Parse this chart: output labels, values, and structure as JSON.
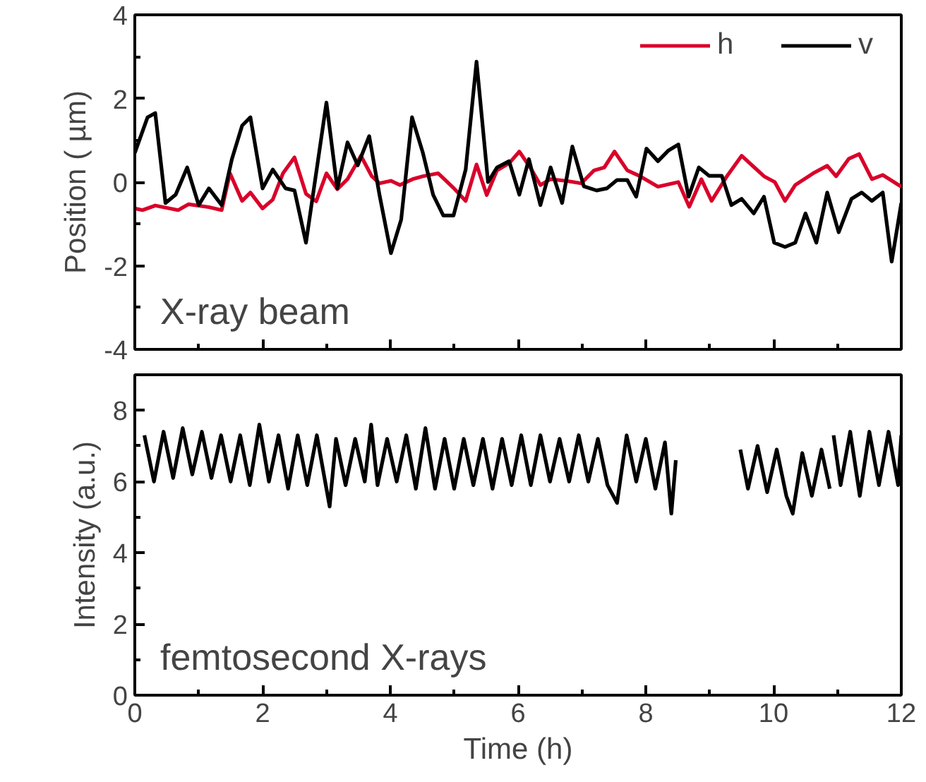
{
  "chart_data": [
    {
      "type": "line",
      "ylabel": "Position ( µm)",
      "annotations": [
        "X-ray beam"
      ],
      "legend": "top right",
      "grid": false,
      "tick_labels": "y",
      "xlim": [
        0,
        12
      ],
      "xticks": [
        0,
        {
          "value": 1,
          "label": null
        },
        2,
        {
          "value": 3,
          "label": null
        },
        4,
        {
          "value": 5,
          "label": null
        },
        6,
        {
          "value": 7,
          "label": null
        },
        8,
        {
          "value": 9,
          "label": null
        },
        10,
        {
          "value": 11,
          "label": null
        },
        12
      ],
      "ylim": [
        -4,
        4
      ],
      "yticks": [
        -4,
        {
          "value": -3,
          "label": null
        },
        -2,
        {
          "value": -1,
          "label": null
        },
        0,
        {
          "value": 1,
          "label": null
        },
        2,
        {
          "value": 3,
          "label": null
        },
        4
      ],
      "series": [
        {
          "name": "h",
          "color": "#d9002a",
          "x": [
            0,
            0.12,
            0.32,
            0.68,
            0.84,
            1.16,
            1.36,
            1.49,
            1.68,
            1.81,
            2.0,
            2.16,
            2.32,
            2.5,
            2.68,
            2.84,
            3.0,
            3.17,
            3.33,
            3.54,
            3.71,
            3.83,
            4.01,
            4.15,
            4.35,
            4.51,
            4.75,
            4.99,
            5.18,
            5.35,
            5.51,
            5.67,
            5.86,
            6.02,
            6.19,
            6.35,
            6.51,
            6.75,
            6.99,
            7.19,
            7.35,
            7.51,
            7.71,
            7.91,
            8.19,
            8.51,
            8.68,
            8.87,
            9.03,
            9.27,
            9.5,
            9.7,
            9.85,
            10.02,
            10.18,
            10.34,
            10.62,
            10.84,
            10.98,
            11.18,
            11.34,
            11.54,
            11.71,
            12.0
          ],
          "values": [
            -0.63,
            -0.67,
            -0.56,
            -0.67,
            -0.53,
            -0.6,
            -0.67,
            0.21,
            -0.45,
            -0.25,
            -0.63,
            -0.42,
            0.21,
            0.59,
            -0.28,
            -0.46,
            0.21,
            -0.17,
            0.07,
            0.63,
            0.14,
            -0.03,
            0.03,
            -0.07,
            0.07,
            0.14,
            0.21,
            -0.14,
            -0.45,
            0.42,
            -0.31,
            0.28,
            0.45,
            0.73,
            0.35,
            -0.07,
            0.07,
            0.03,
            -0.03,
            0.28,
            0.35,
            0.73,
            0.28,
            0.14,
            -0.11,
            0,
            -0.59,
            0.07,
            -0.45,
            0.14,
            0.63,
            0.35,
            0.14,
            0,
            -0.45,
            -0.07,
            0.21,
            0.39,
            0.14,
            0.56,
            0.67,
            0.07,
            0.17,
            -0.11
          ]
        },
        {
          "name": "v",
          "color": "#000000",
          "x": [
            0,
            0.2,
            0.32,
            0.48,
            0.64,
            0.82,
            1.0,
            1.16,
            1.36,
            1.52,
            1.68,
            1.81,
            2.0,
            2.16,
            2.36,
            2.5,
            2.68,
            3.0,
            3.17,
            3.33,
            3.49,
            3.67,
            3.83,
            4.01,
            4.17,
            4.34,
            4.51,
            4.67,
            4.83,
            4.99,
            5.18,
            5.35,
            5.53,
            5.67,
            5.86,
            6.02,
            6.17,
            6.35,
            6.51,
            6.69,
            6.85,
            7.03,
            7.23,
            7.39,
            7.55,
            7.71,
            7.85,
            8.01,
            8.19,
            8.35,
            8.51,
            8.67,
            8.83,
            8.99,
            9.19,
            9.34,
            9.5,
            9.69,
            9.85,
            10.01,
            10.18,
            10.34,
            10.5,
            10.67,
            10.84,
            11.02,
            11.22,
            11.38,
            11.54,
            11.71,
            11.85,
            12.0
          ],
          "values": [
            0.7,
            1.55,
            1.65,
            -0.5,
            -0.3,
            0.35,
            -0.55,
            -0.15,
            -0.55,
            0.55,
            1.35,
            1.55,
            -0.15,
            0.3,
            -0.15,
            -0.2,
            -1.45,
            1.9,
            -0.15,
            0.95,
            0.4,
            1.1,
            -0.3,
            -1.7,
            -0.9,
            1.55,
            0.7,
            -0.3,
            -0.8,
            -0.8,
            0.3,
            2.88,
            0,
            0.35,
            0.5,
            -0.3,
            0.55,
            -0.55,
            0.35,
            -0.5,
            0.85,
            -0.1,
            -0.2,
            -0.15,
            0.05,
            0.05,
            -0.35,
            0.8,
            0.5,
            0.75,
            0.9,
            -0.35,
            0.35,
            0.15,
            0.15,
            -0.55,
            -0.4,
            -0.75,
            -0.35,
            -1.45,
            -1.55,
            -1.45,
            -0.75,
            -1.45,
            -0.25,
            -1.2,
            -0.4,
            -0.25,
            -0.45,
            -0.25,
            -1.9,
            -0.5
          ]
        }
      ]
    },
    {
      "type": "line",
      "xlabel": "Time (h)",
      "ylabel": "Intensity (a.u.)",
      "annotations": [
        "femtosecond X-rays"
      ],
      "grid": false,
      "xlim": [
        0,
        12
      ],
      "xticks": [
        0,
        {
          "value": 1,
          "label": null
        },
        2,
        {
          "value": 3,
          "label": null
        },
        4,
        {
          "value": 5,
          "label": null
        },
        6,
        {
          "value": 7,
          "label": null
        },
        8,
        {
          "value": 9,
          "label": null
        },
        10,
        {
          "value": 11,
          "label": null
        },
        12
      ],
      "ylim": [
        0,
        9
      ],
      "yticks": [
        0,
        {
          "value": 1,
          "label": null
        },
        2,
        {
          "value": 3,
          "label": null
        },
        4,
        {
          "value": 5,
          "label": null
        },
        6,
        {
          "value": 7,
          "label": null
        },
        8
      ],
      "series": [
        {
          "color": "#000000",
          "x": [
            0.15,
            0.3,
            0.45,
            0.6,
            0.75,
            0.9,
            1.05,
            1.2,
            1.35,
            1.5,
            1.65,
            1.8,
            1.95,
            2.1,
            2.25,
            2.4,
            2.55,
            2.7,
            2.85,
            3.0,
            3.05,
            3.15,
            3.3,
            3.45,
            3.6,
            3.7,
            3.8,
            3.95,
            4.1,
            4.25,
            4.4,
            4.55,
            4.7,
            4.85,
            5.0,
            5.15,
            5.3,
            5.45,
            5.6,
            5.75,
            5.9,
            6.05,
            6.2,
            6.35,
            6.5,
            6.65,
            6.8,
            6.95,
            7.1,
            7.25,
            7.4,
            7.55,
            7.7,
            7.85,
            8.0,
            8.15,
            8.3,
            8.4,
            8.47,
            9.0,
            9.48,
            9.6,
            9.75,
            9.9,
            10.05,
            10.2,
            10.3,
            10.45,
            10.6,
            10.75,
            10.88,
            10.91,
            10.94,
            11.05,
            11.2,
            11.35,
            11.5,
            11.65,
            11.8,
            11.95,
            12.0
          ],
          "values": [
            7.3,
            6.0,
            7.4,
            6.1,
            7.5,
            6.2,
            7.4,
            6.1,
            7.3,
            6.0,
            7.3,
            5.9,
            7.6,
            6.0,
            7.3,
            5.8,
            7.3,
            5.9,
            7.3,
            5.8,
            5.3,
            7.2,
            5.9,
            7.2,
            6.0,
            7.6,
            5.9,
            7.2,
            6.0,
            7.3,
            5.8,
            7.5,
            5.8,
            7.2,
            5.8,
            7.2,
            5.9,
            7.2,
            5.8,
            7.2,
            5.9,
            7.3,
            5.9,
            7.3,
            6.0,
            7.2,
            6.0,
            7.3,
            6.0,
            7.2,
            5.9,
            5.4,
            7.3,
            6.0,
            7.2,
            5.8,
            7.1,
            5.1,
            6.6,
            null,
            6.9,
            5.8,
            7.0,
            5.7,
            6.9,
            5.6,
            5.1,
            6.8,
            5.6,
            6.9,
            5.8,
            null,
            7.3,
            5.9,
            7.4,
            5.6,
            7.4,
            5.9,
            7.4,
            5.9,
            7.3
          ]
        }
      ]
    }
  ]
}
